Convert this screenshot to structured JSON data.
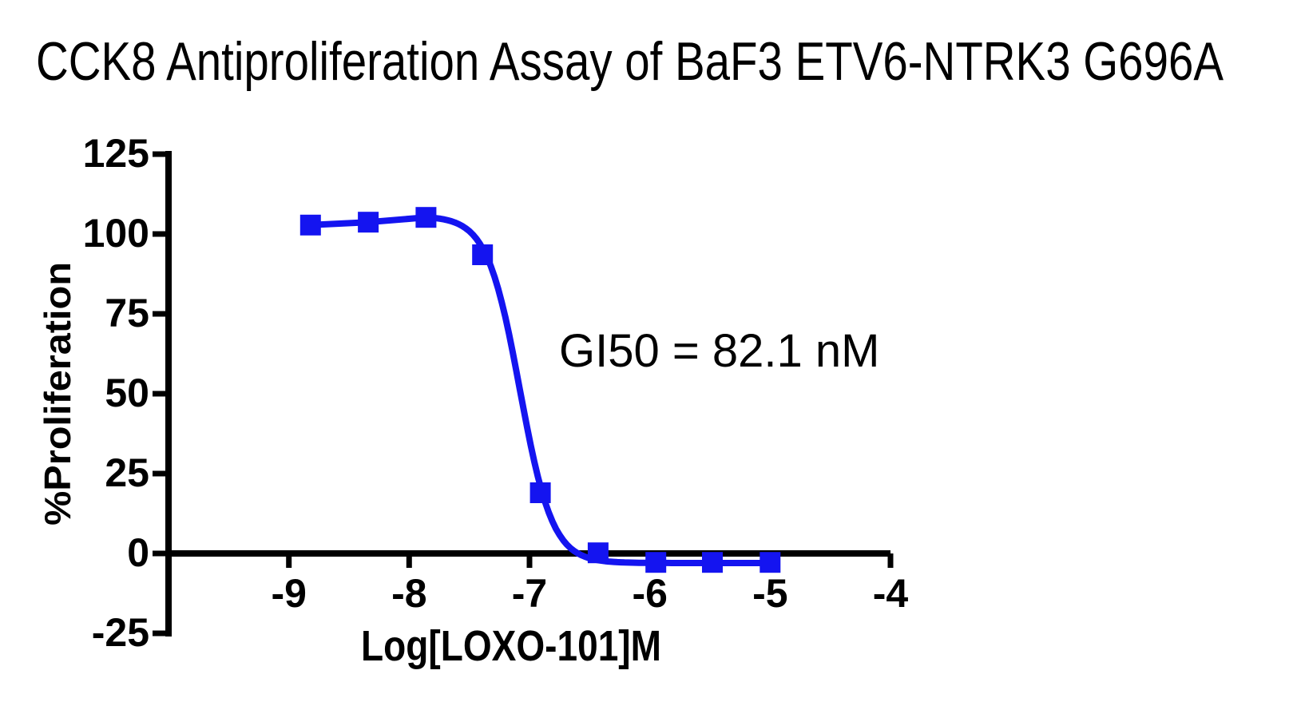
{
  "figure": {
    "background_color": "#ffffff",
    "text_color": "#000000",
    "axis_color": "#000000"
  },
  "chart_data": {
    "type": "scatter",
    "title": "CCK8 Antiproliferation Assay of BaF3 ETV6-NTRK3 G696A",
    "xlabel": "Log[LOXO-101]M",
    "ylabel": "%Proliferation",
    "xlim": [
      -10,
      -4
    ],
    "ylim": [
      -25,
      125
    ],
    "x_ticks": [
      -9,
      -8,
      -7,
      -6,
      -5,
      -4
    ],
    "y_ticks": [
      125,
      100,
      75,
      50,
      25,
      0,
      -25
    ],
    "grid": false,
    "legend_position": "none",
    "annotations": [
      {
        "text": "GI50 = 82.1 nM",
        "gi50_nM": 82.1
      }
    ],
    "series": [
      {
        "name": "BaF3 ETV6-NTRK3 G696A",
        "color": "#1414f0",
        "marker": "square",
        "marker_size": 26,
        "points": [
          {
            "x": -8.82,
            "y": 102.8
          },
          {
            "x": -8.34,
            "y": 103.7
          },
          {
            "x": -7.86,
            "y": 105.2
          },
          {
            "x": -7.39,
            "y": 93.5
          },
          {
            "x": -6.91,
            "y": 19.0
          },
          {
            "x": -6.43,
            "y": 0.2
          },
          {
            "x": -5.95,
            "y": -2.8
          },
          {
            "x": -5.48,
            "y": -2.8
          },
          {
            "x": -5.0,
            "y": -2.8
          }
        ],
        "fit_curve": {
          "model": "four_parameter_logistic",
          "top": 105.6,
          "bottom": -3.0,
          "log_ic50": -7.08,
          "hill_slope": -3.2,
          "x_start": -8.82,
          "x_end": -5.0
        }
      }
    ]
  }
}
